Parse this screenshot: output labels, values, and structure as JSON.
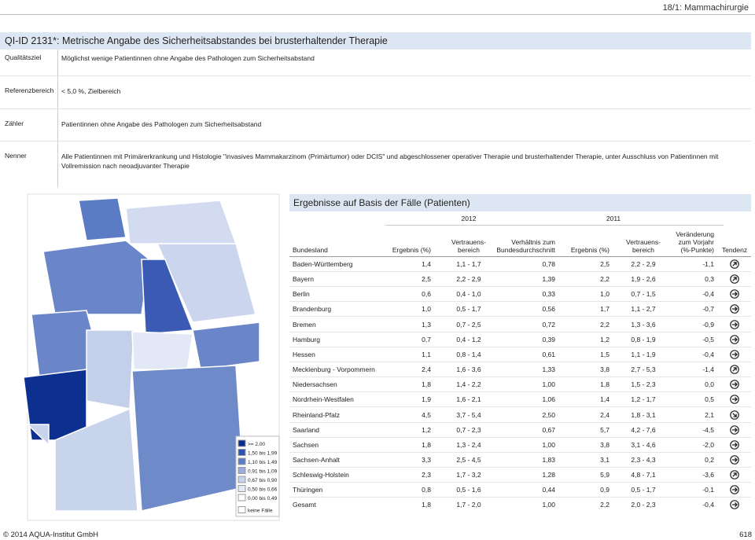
{
  "header": {
    "page_label": "18/1: Mammachirurgie"
  },
  "title": "QI-ID 2131*: Metrische Angabe des Sicherheitsabstandes bei brusterhaltender Therapie",
  "info": [
    {
      "label": "Qualitätsziel",
      "text": "Möglichst wenige Patientinnen ohne Angabe des Pathologen zum Sicherheitsabstand"
    },
    {
      "label": "Referenzbereich",
      "text": "< 5,0 %, Zielbereich"
    },
    {
      "label": "Zähler",
      "text": "Patientinnen ohne Angabe des Pathologen zum Sicherheitsabstand"
    },
    {
      "label": "Nenner",
      "text": "Alle Patientinnen mit Primärerkrankung und Histologie \"invasives Mammakarzinom (Primärtumor) oder DCIS\" und abgeschlossener operativer Therapie und brusterhaltender Therapie, unter Ausschluss von Patientinnen mit Vollremission nach neoadjuvanter Therapie"
    }
  ],
  "legend": [
    ">= 2,00",
    "1,50 bis 1,99",
    "1,10 bis 1,49",
    "0,91 bis 1,09",
    "0,67 bis 0,90",
    "0,50 bis 0,66",
    "0,00 bis 0,49",
    "keine Fälle"
  ],
  "table": {
    "title": "Ergebnisse auf Basis der Fälle (Patienten)",
    "years": [
      "2012",
      "2011"
    ],
    "columns": [
      "Bundesland",
      "Ergebnis (%)",
      "Vertrauens-\nbereich",
      "Verhältnis zum\nBundesdurchschnitt",
      "Ergebnis (%)",
      "Vertrauens-\nbereich",
      "Veränderung\nzum Vorjahr\n(%-Punkte)",
      "Tendenz"
    ],
    "rows": [
      [
        "Baden-Württemberg",
        "1,4",
        "1,1 - 1,7",
        "0,78",
        "2,5",
        "2,2 - 2,9",
        "-1,1"
      ],
      [
        "Bayern",
        "2,5",
        "2,2 - 2,9",
        "1,39",
        "2,2",
        "1,9 - 2,6",
        "0,3"
      ],
      [
        "Berlin",
        "0,6",
        "0,4 - 1,0",
        "0,33",
        "1,0",
        "0,7 - 1,5",
        "-0,4"
      ],
      [
        "Brandenburg",
        "1,0",
        "0,5 - 1,7",
        "0,56",
        "1,7",
        "1,1 - 2,7",
        "-0,7"
      ],
      [
        "Bremen",
        "1,3",
        "0,7 - 2,5",
        "0,72",
        "2,2",
        "1,3 - 3,6",
        "-0,9"
      ],
      [
        "Hamburg",
        "0,7",
        "0,4 - 1,2",
        "0,39",
        "1,2",
        "0,8 - 1,9",
        "-0,5"
      ],
      [
        "Hessen",
        "1,1",
        "0,8 - 1,4",
        "0,61",
        "1,5",
        "1,1 - 1,9",
        "-0,4"
      ],
      [
        "Mecklenburg - Vorpommern",
        "2,4",
        "1,6 - 3,6",
        "1,33",
        "3,8",
        "2,7 - 5,3",
        "-1,4"
      ],
      [
        "Niedersachsen",
        "1,8",
        "1,4 - 2,2",
        "1,00",
        "1,8",
        "1,5 - 2,3",
        "0,0"
      ],
      [
        "Nordrhein-Westfalen",
        "1,9",
        "1,6 - 2,1",
        "1,06",
        "1,4",
        "1,2 - 1,7",
        "0,5"
      ],
      [
        "Rheinland-Pfalz",
        "4,5",
        "3,7 - 5,4",
        "2,50",
        "2,4",
        "1,8 - 3,1",
        "2,1"
      ],
      [
        "Saarland",
        "1,2",
        "0,7 - 2,3",
        "0,67",
        "5,7",
        "4,2 - 7,6",
        "-4,5"
      ],
      [
        "Sachsen",
        "1,8",
        "1,3 - 2,4",
        "1,00",
        "3,8",
        "3,1 - 4,6",
        "-2,0"
      ],
      [
        "Sachsen-Anhalt",
        "3,3",
        "2,5 - 4,5",
        "1,83",
        "3,1",
        "2,3 - 4,3",
        "0,2"
      ],
      [
        "Schleswig-Holstein",
        "2,3",
        "1,7 - 3,2",
        "1,28",
        "5,9",
        "4,8 - 7,1",
        "-3,6"
      ],
      [
        "Thüringen",
        "0,8",
        "0,5 - 1,6",
        "0,44",
        "0,9",
        "0,5 - 1,7",
        "-0,1"
      ],
      [
        "Gesamt",
        "1,8",
        "1,7 - 2,0",
        "1,00",
        "2,2",
        "2,0 - 2,3",
        "-0,4"
      ]
    ]
  },
  "footer": {
    "copyright": "© 2014 AQUA-Institut GmbH",
    "page_number": "618"
  }
}
